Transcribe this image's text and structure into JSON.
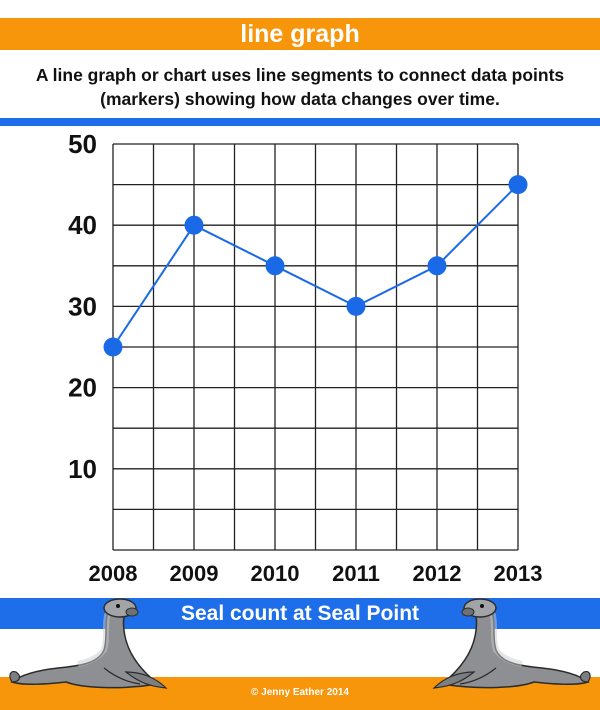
{
  "header": {
    "title": "line graph",
    "description": "A line graph or chart uses line segments to connect data points (markers) showing how data changes over time."
  },
  "chart_data": {
    "type": "line",
    "x": [
      "2008",
      "2009",
      "2010",
      "2011",
      "2012",
      "2013"
    ],
    "series": [
      {
        "values": [
          25,
          40,
          35,
          30,
          35,
          45
        ],
        "color": "#1a6ae8"
      }
    ],
    "yticks": [
      10,
      20,
      30,
      40,
      50
    ],
    "ylim": [
      0,
      50
    ],
    "grid": true,
    "title": "Seal count at Seal Point"
  },
  "footer": {
    "credit": "© Jenny Eather 2014",
    "left_image": "seal-illustration",
    "right_image": "seal-illustration"
  },
  "colors": {
    "orange": "#f7950b",
    "blue": "#1e6eea",
    "line": "#1a6ae8"
  }
}
